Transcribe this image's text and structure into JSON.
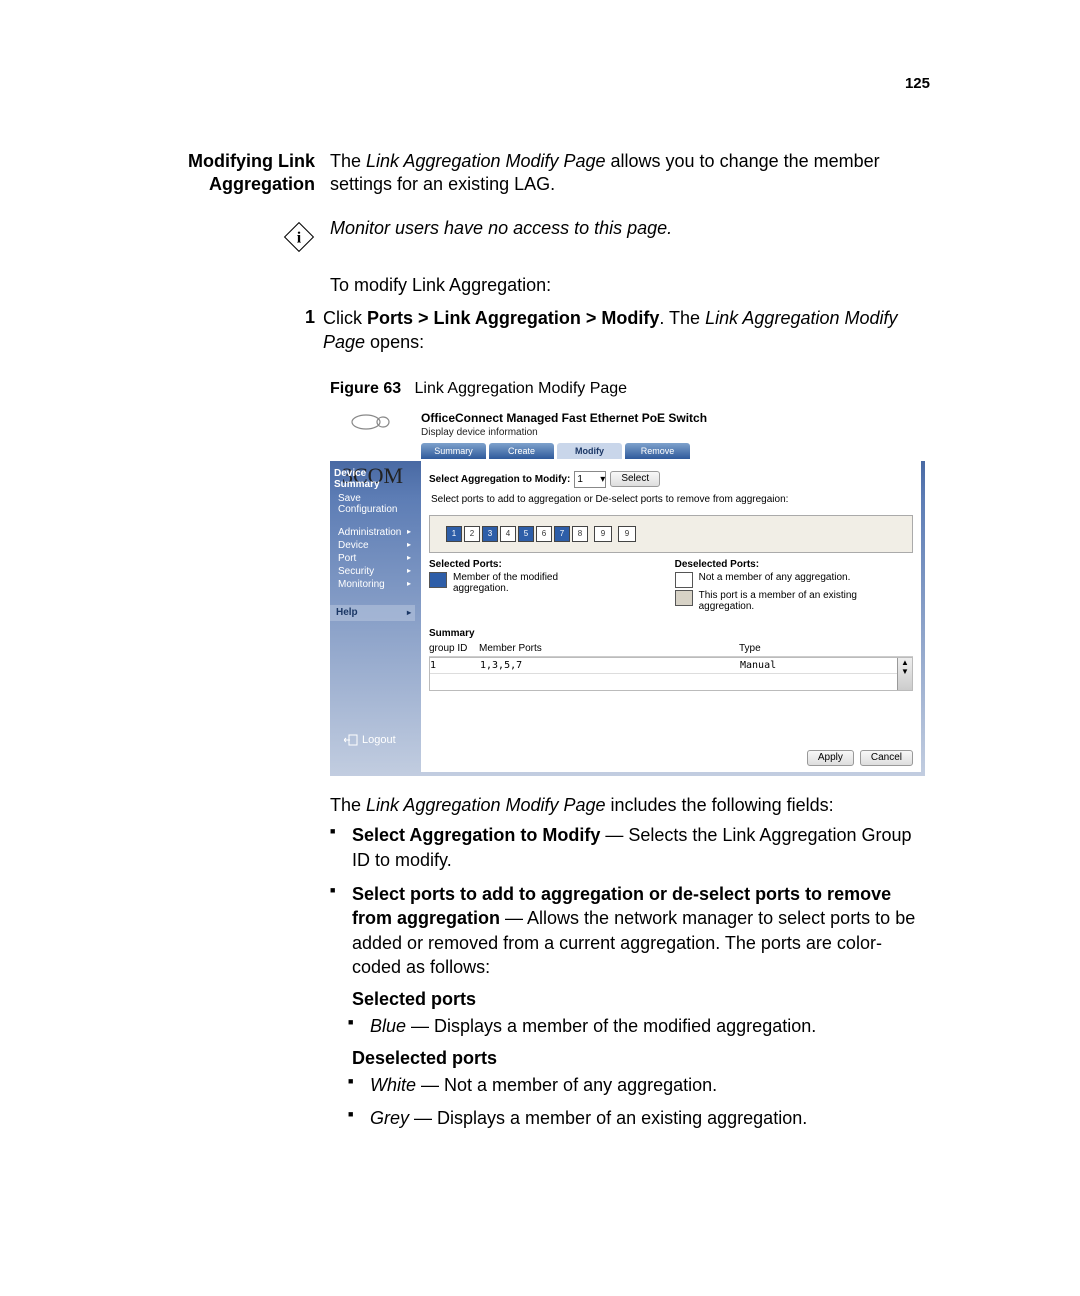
{
  "page_number": "125",
  "section_title_line1": "Modifying Link",
  "section_title_line2": "Aggregation",
  "intro_para_1": "The ",
  "intro_em": "Link Aggregation Modify Page",
  "intro_para_2": " allows you to change the member settings for an existing LAG.",
  "note": "Monitor users have no access to this page.",
  "lead_in": "To modify Link Aggregation:",
  "step1_num": "1",
  "step1_a": "Click ",
  "step1_b": "Ports > Link Aggregation > Modify",
  "step1_c": ". The ",
  "step1_d": "Link Aggregation Modify Page",
  "step1_e": " opens:",
  "fig_label": "Figure 63",
  "fig_title": "Link Aggregation Modify Page",
  "screenshot": {
    "logo": "3COM",
    "header_title": "OfficeConnect Managed Fast Ethernet PoE Switch",
    "header_sub": "Display device information",
    "tabs": {
      "summary": "Summary",
      "create": "Create",
      "modify": "Modify",
      "remove": "Remove"
    },
    "sidebar": {
      "device_summary": "Device Summary",
      "save_config": "Save Configuration",
      "administration": "Administration",
      "device": "Device",
      "port": "Port",
      "security": "Security",
      "monitoring": "Monitoring",
      "help": "Help"
    },
    "logout": "Logout",
    "select_label": "Select Aggregation to Modify:",
    "select_value": "1",
    "select_btn": "Select",
    "port_instr": "Select ports to add to aggregation or De-select ports to remove from aggregaion:",
    "ports": {
      "numbers": [
        "1",
        "2",
        "3",
        "4",
        "5",
        "6",
        "7",
        "8",
        "9",
        "9"
      ],
      "selected": [
        true,
        false,
        true,
        false,
        true,
        false,
        true,
        false,
        false,
        false
      ],
      "selected_color": "#2e5ea8",
      "deselected_color": "#ffffff"
    },
    "legend": {
      "sel_hdr": "Selected Ports:",
      "sel_item": "Member of the modified aggregation.",
      "des_hdr": "Deselected Ports:",
      "des_item1": "Not a member of any aggregation.",
      "des_item2": "This port is a member of an existing aggregation."
    },
    "summary_hdr": "Summary",
    "table": {
      "col_gid": "group ID",
      "col_mp": "Member Ports",
      "col_type": "Type",
      "row_gid": "1",
      "row_mp": "1,3,5,7",
      "row_type": "Manual"
    },
    "apply": "Apply",
    "cancel": "Cancel"
  },
  "fields_intro_a": "The ",
  "fields_intro_b": "Link Aggregation Modify Page",
  "fields_intro_c": " includes the following fields:",
  "f1_b": "Select Aggregation to Modify",
  "f1_t": " — Selects the Link Aggregation Group ID to modify.",
  "f2_b": "Select ports to add to aggregation or de-select ports to remove from aggregation",
  "f2_t": " — Allows the network manager to select ports to be added or removed from a current aggregation. The ports are color-coded as follows:",
  "sel_ports_h": "Selected ports",
  "sel_ports_li_em": "Blue",
  "sel_ports_li_t": " — Displays a member of the modified aggregation.",
  "des_ports_h": "Deselected ports",
  "des_li1_em": "White",
  "des_li1_t": " — Not a member of any aggregation.",
  "des_li2_em": "Grey",
  "des_li2_t": " — Displays a member of an existing aggregation."
}
